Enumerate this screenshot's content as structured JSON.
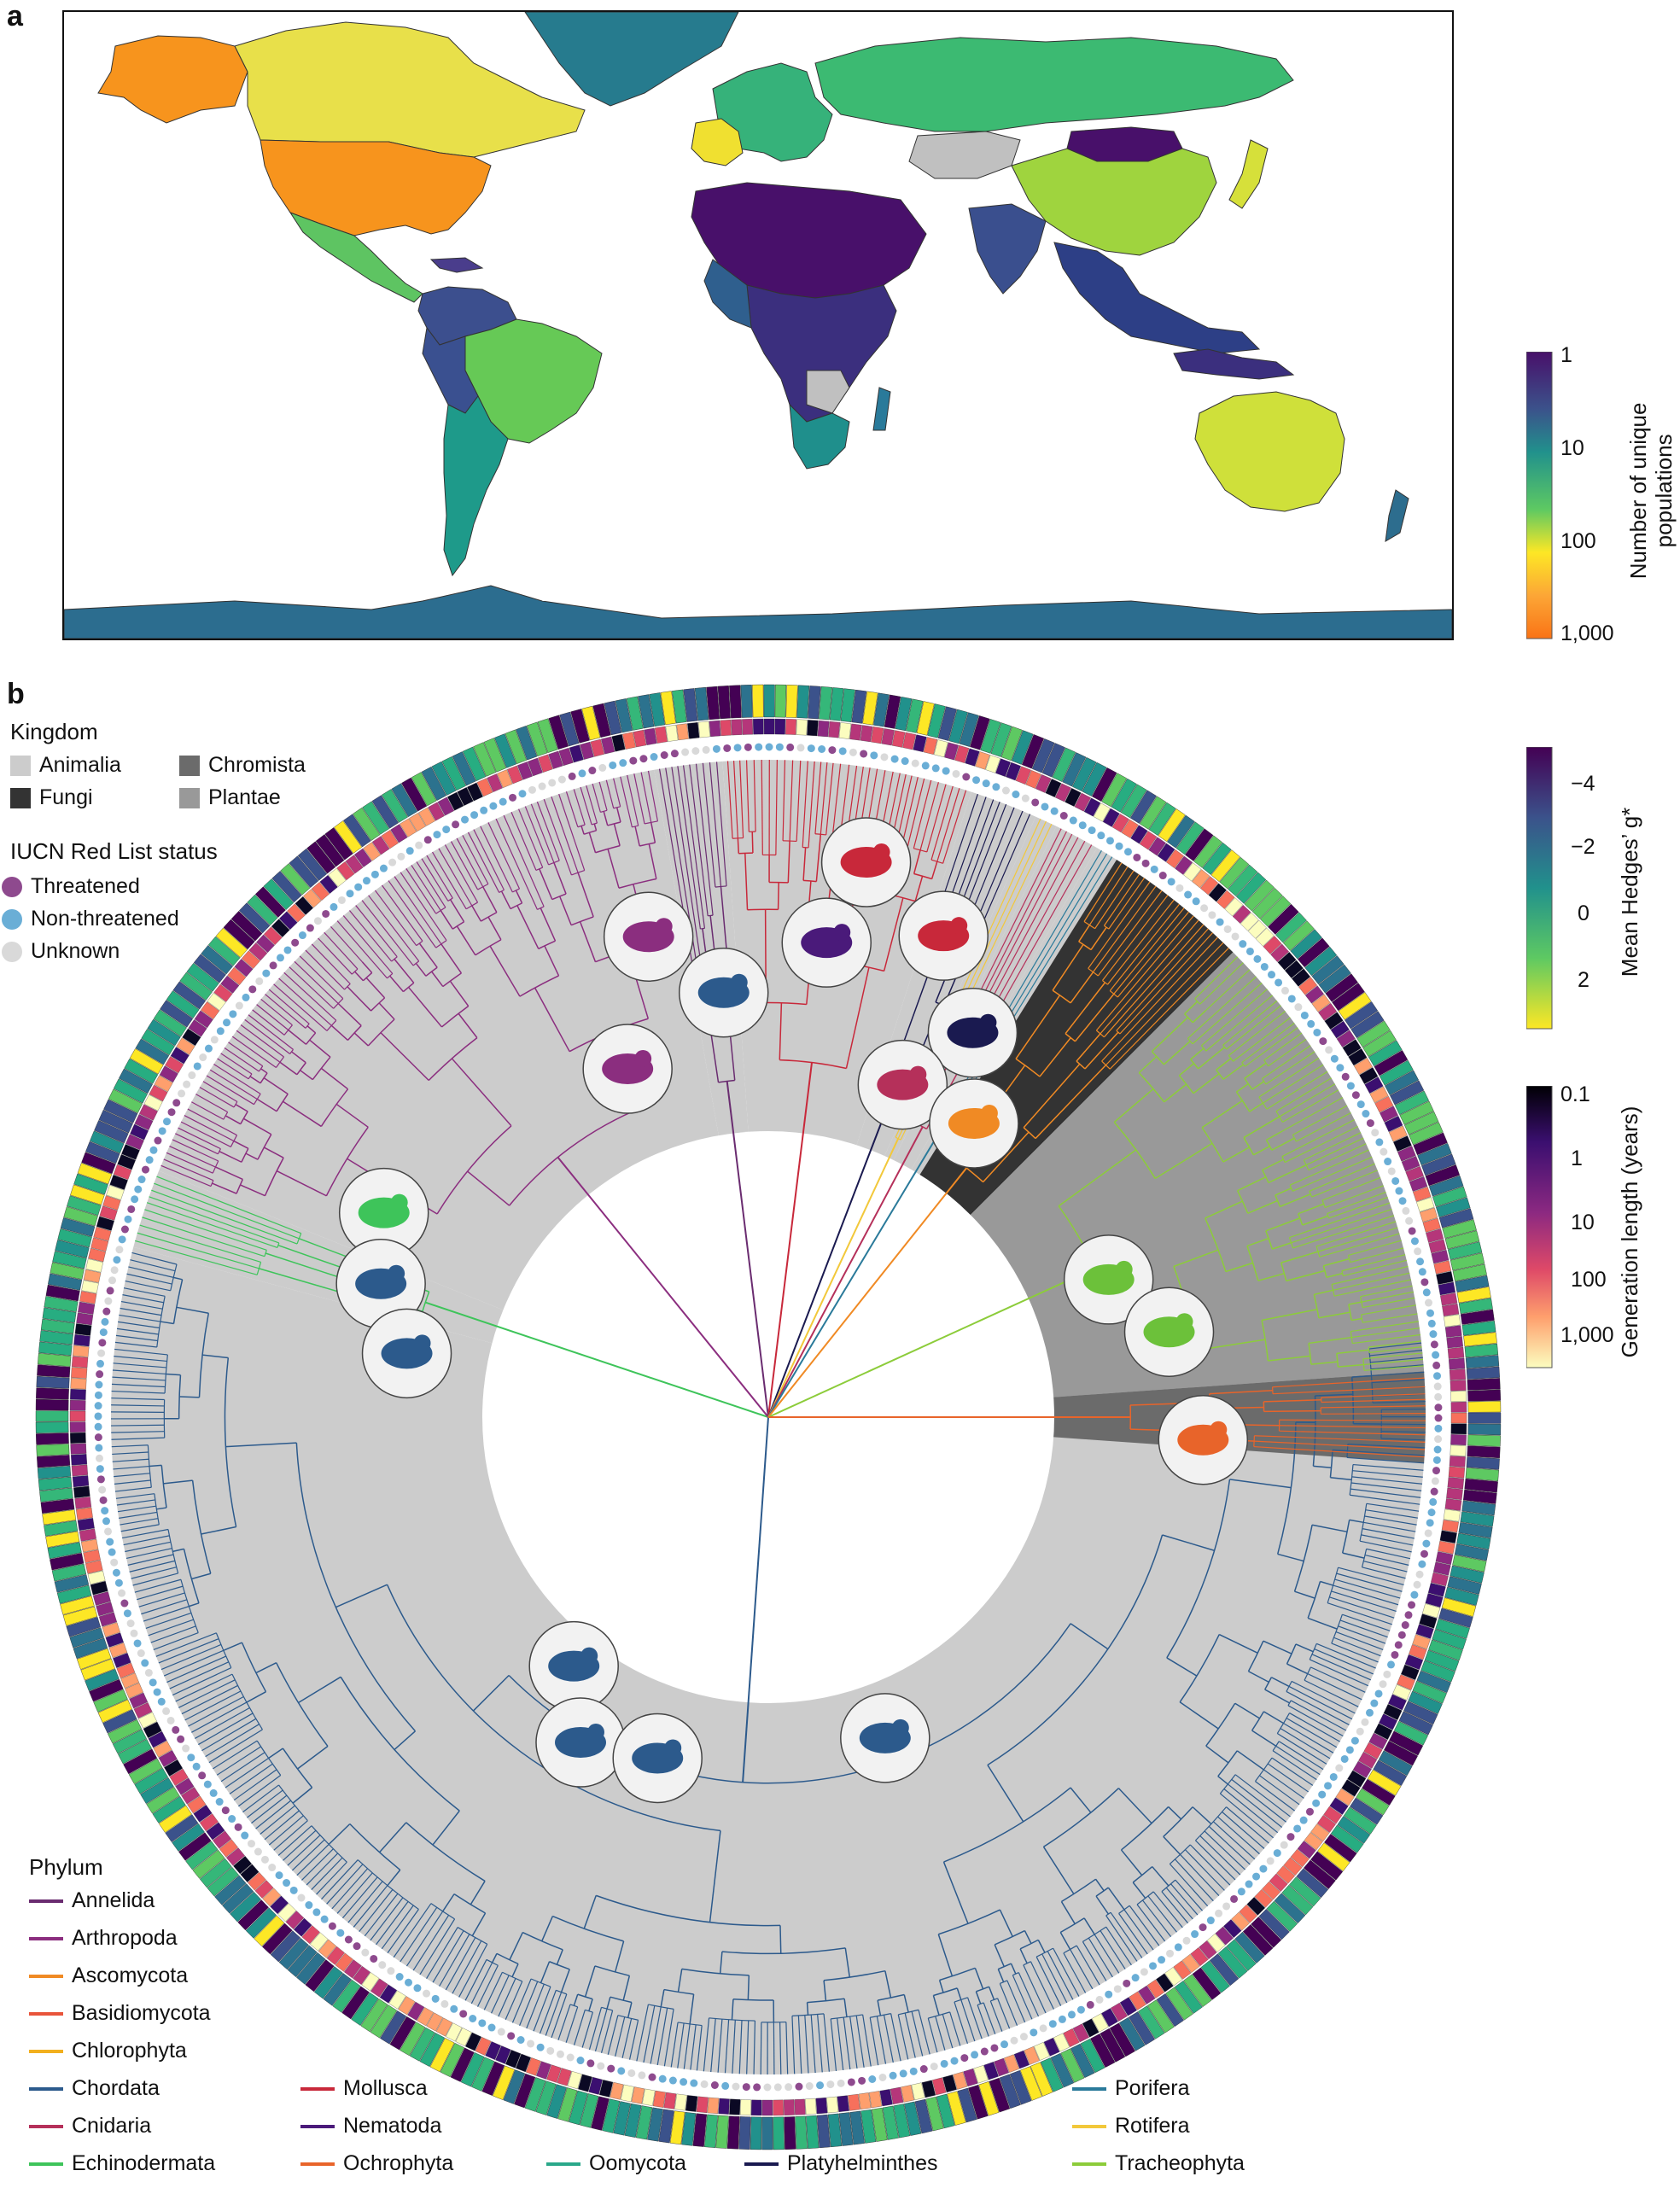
{
  "panels": {
    "a_label": "a",
    "b_label": "b"
  },
  "map": {
    "colorbar_title_line1": "Number of unique",
    "colorbar_title_line2": "populations",
    "colorbar_ticks": [
      "1",
      "10",
      "100",
      "1,000"
    ],
    "scale": "log",
    "no_data_color": "#c0c0c0",
    "colormap": "plasma_r-like",
    "regions": [
      {
        "name": "Canada",
        "populations": 260,
        "color": "#e8e04a"
      },
      {
        "name": "USA",
        "populations": 700,
        "color": "#f7941d"
      },
      {
        "name": "Alaska",
        "populations": 700,
        "color": "#f7941d"
      },
      {
        "name": "Mexico",
        "populations": 60,
        "color": "#5ec462"
      },
      {
        "name": "Brazil",
        "populations": 60,
        "color": "#66c956"
      },
      {
        "name": "Argentina",
        "populations": 20,
        "color": "#1e9a8a"
      },
      {
        "name": "Europe",
        "populations": 40,
        "color": "#36b27a"
      },
      {
        "name": "Russia",
        "populations": 40,
        "color": "#3cba72"
      },
      {
        "name": "China",
        "populations": 120,
        "color": "#9fd43e"
      },
      {
        "name": "Australia",
        "populations": 200,
        "color": "#cfe03a"
      },
      {
        "name": "Greenland",
        "populations": 10,
        "color": "#267b8e"
      },
      {
        "name": "Antarctica",
        "populations": 10,
        "color": "#2c6d8f"
      },
      {
        "name": "Mongolia",
        "populations": 1,
        "color": "#48106a"
      }
    ]
  },
  "tree": {
    "hedges_title": "Mean Hedges’ g*",
    "hedges_ticks": [
      "−4",
      "−2",
      "0",
      "2"
    ],
    "generation_title": "Generation length (years)",
    "generation_ticks": [
      "0.1",
      "1",
      "10",
      "100",
      "1,000"
    ],
    "kingdom_head": "Kingdom",
    "kingdoms": [
      {
        "label": "Animalia",
        "color": "#cccccc"
      },
      {
        "label": "Chromista",
        "color": "#6b6b6b"
      },
      {
        "label": "Fungi",
        "color": "#333333"
      },
      {
        "label": "Plantae",
        "color": "#999999"
      }
    ],
    "iucn_head": "IUCN Red List status",
    "iucn": [
      {
        "label": "Threatened",
        "color": "#8e4a8e"
      },
      {
        "label": "Non-threatened",
        "color": "#6aaed6"
      },
      {
        "label": "Unknown",
        "color": "#d9d9d9"
      }
    ],
    "phylum_head": "Phylum",
    "phyla": [
      {
        "label": "Annelida",
        "color": "#6a2c70"
      },
      {
        "label": "Arthropoda",
        "color": "#8b2e7f"
      },
      {
        "label": "Ascomycota",
        "color": "#f08a24"
      },
      {
        "label": "Basidiomycota",
        "color": "#e8543a"
      },
      {
        "label": "Chlorophyta",
        "color": "#f2b01e"
      },
      {
        "label": "Chordata",
        "color": "#2c5a8c"
      },
      {
        "label": "Cnidaria",
        "color": "#b5305a"
      },
      {
        "label": "Echinodermata",
        "color": "#3ec45a"
      },
      {
        "label": "Mollusca",
        "color": "#c8283a"
      },
      {
        "label": "Nematoda",
        "color": "#4a1a7a"
      },
      {
        "label": "Ochrophyta",
        "color": "#e8642a"
      },
      {
        "label": "Oomycota",
        "color": "#2aa88a"
      },
      {
        "label": "Platyhelminthes",
        "color": "#1a1a50"
      },
      {
        "label": "Porifera",
        "color": "#2a7a9a"
      },
      {
        "label": "Rotifera",
        "color": "#f2c83a"
      },
      {
        "label": "Tracheophyta",
        "color": "#8ccc3a"
      }
    ],
    "clades": [
      {
        "phylum": "Chordata",
        "start_deg": 165,
        "end_deg": 367,
        "kingdom": "Animalia"
      },
      {
        "phylum": "Echinodermata",
        "start_deg": 158,
        "end_deg": 165,
        "kingdom": "Animalia"
      },
      {
        "phylum": "Arthropoda",
        "start_deg": 100,
        "end_deg": 158,
        "kingdom": "Animalia"
      },
      {
        "phylum": "Annelida",
        "start_deg": 94,
        "end_deg": 100,
        "kingdom": "Animalia"
      },
      {
        "phylum": "Mollusca",
        "start_deg": 72,
        "end_deg": 94,
        "kingdom": "Animalia"
      },
      {
        "phylum": "Platyhelminthes",
        "start_deg": 66,
        "end_deg": 72,
        "kingdom": "Animalia"
      },
      {
        "phylum": "Rotifera",
        "start_deg": 64,
        "end_deg": 66,
        "kingdom": "Animalia"
      },
      {
        "phylum": "Cnidaria",
        "start_deg": 60,
        "end_deg": 64,
        "kingdom": "Animalia"
      },
      {
        "phylum": "Porifera",
        "start_deg": 58,
        "end_deg": 60,
        "kingdom": "Animalia"
      },
      {
        "phylum": "Ascomycota",
        "start_deg": 45,
        "end_deg": 58,
        "kingdom": "Fungi"
      },
      {
        "phylum": "Tracheophyta",
        "start_deg": 4,
        "end_deg": 45,
        "kingdom": "Plantae"
      },
      {
        "phylum": "Ochrophyta",
        "start_deg": -4,
        "end_deg": 4,
        "kingdom": "Chromista"
      }
    ],
    "silhouettes": [
      {
        "name": "starfish-sea-urchin-icon",
        "angle_deg": 152,
        "r": 510
      },
      {
        "name": "eel-shark-icon",
        "angle_deg": 161,
        "r": 480
      },
      {
        "name": "fish-icon",
        "angle_deg": 170,
        "r": 430
      },
      {
        "name": "dragonfly-icon",
        "angle_deg": 112,
        "r": 440
      },
      {
        "name": "crustacean-icon",
        "angle_deg": 104,
        "r": 580
      },
      {
        "name": "spider-icon",
        "angle_deg": 96,
        "r": 500
      },
      {
        "name": "worm-icon",
        "angle_deg": 83,
        "r": 560
      },
      {
        "name": "snail-icon",
        "angle_deg": 80,
        "r": 660
      },
      {
        "name": "octopus-icon",
        "angle_deg": 70,
        "r": 600
      },
      {
        "name": "flatworm-icon",
        "angle_deg": 62,
        "r": 510
      },
      {
        "name": "coral-jellyfish-icon",
        "angle_deg": 68,
        "r": 420
      },
      {
        "name": "mushroom-icon",
        "angle_deg": 55,
        "r": 420
      },
      {
        "name": "leaf-icon",
        "angle_deg": 22,
        "r": 430
      },
      {
        "name": "tree-grass-icon",
        "angle_deg": 12,
        "r": 480
      },
      {
        "name": "kelp-icon",
        "angle_deg": -3,
        "r": 510
      },
      {
        "name": "frog-icon",
        "angle_deg": 232,
        "r": 370
      },
      {
        "name": "lizard-icon",
        "angle_deg": 240,
        "r": 440
      },
      {
        "name": "bird-icon",
        "angle_deg": 252,
        "r": 420
      },
      {
        "name": "deer-icon",
        "angle_deg": 290,
        "r": 400
      }
    ]
  }
}
